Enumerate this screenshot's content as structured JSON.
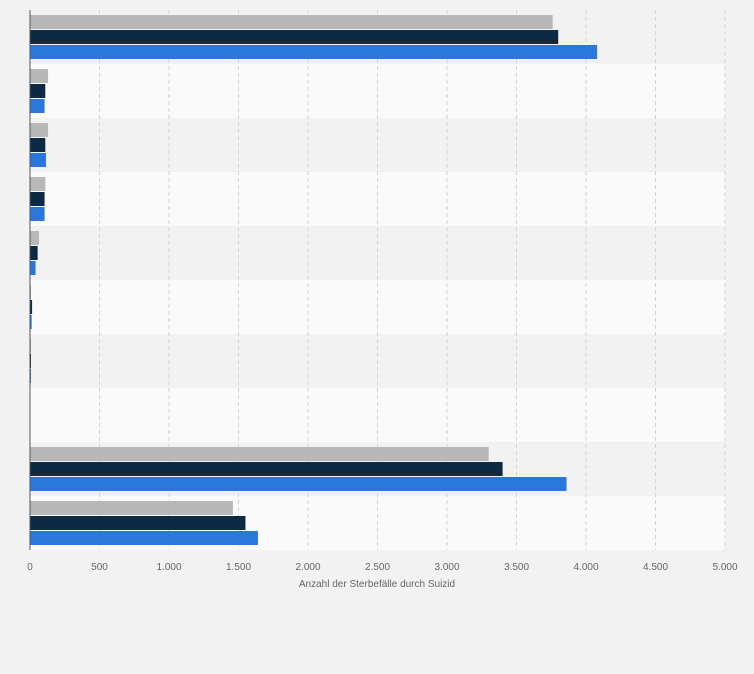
{
  "chart_data": {
    "type": "bar",
    "orientation": "horizontal",
    "title": "",
    "xlabel": "Anzahl der Sterbefälle durch Suizid",
    "ylabel": "",
    "xlim": [
      0,
      5000
    ],
    "xticks": [
      0,
      500,
      1000,
      1500,
      2000,
      2500,
      3000,
      3500,
      4000,
      4500,
      5000
    ],
    "xtick_labels": [
      "0",
      "500",
      "1.000",
      "1.500",
      "2.000",
      "2.500",
      "3.000",
      "3.500",
      "4.000",
      "4.500",
      "5.000"
    ],
    "grid": true,
    "legend": "none",
    "category_count": 10,
    "category_labels": [],
    "series": [
      {
        "color": "#b8b8b8",
        "values": [
          3760,
          130,
          130,
          110,
          65,
          4,
          7,
          0,
          3300,
          1460
        ]
      },
      {
        "color": "#0d2a45",
        "values": [
          3800,
          110,
          110,
          105,
          55,
          15,
          4,
          0,
          3400,
          1550
        ]
      },
      {
        "color": "#2a78dc",
        "values": [
          4080,
          105,
          115,
          105,
          40,
          12,
          7,
          0,
          3860,
          1640
        ]
      }
    ]
  }
}
